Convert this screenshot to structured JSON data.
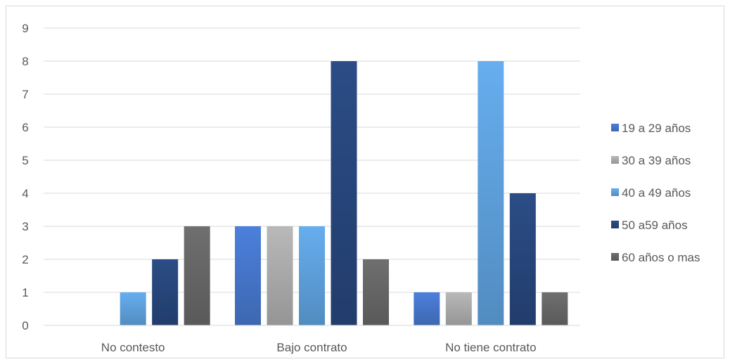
{
  "chart_data": {
    "type": "bar",
    "title": "",
    "xlabel": "",
    "ylabel": "",
    "categories": [
      "No contesto",
      "Bajo contrato",
      "No tiene contrato"
    ],
    "series": [
      {
        "name": "19 a 29 años",
        "values": [
          0,
          3,
          1
        ],
        "color": "#4472C4"
      },
      {
        "name": "30 a 39 años",
        "values": [
          0,
          3,
          1
        ],
        "color": "#A5A5A5"
      },
      {
        "name": "40 a 49 años",
        "values": [
          1,
          3,
          8
        ],
        "color": "#5B9BD5"
      },
      {
        "name": "50 a59 años",
        "values": [
          2,
          8,
          4
        ],
        "color": "#264478"
      },
      {
        "name": "60 años o mas",
        "values": [
          3,
          2,
          1
        ],
        "color": "#636363"
      }
    ],
    "ylim": [
      0,
      9
    ],
    "yticks": [
      "0",
      "1",
      "2",
      "3",
      "4",
      "5",
      "6",
      "7",
      "8",
      "9"
    ],
    "grid": true,
    "legend_position": "right"
  }
}
